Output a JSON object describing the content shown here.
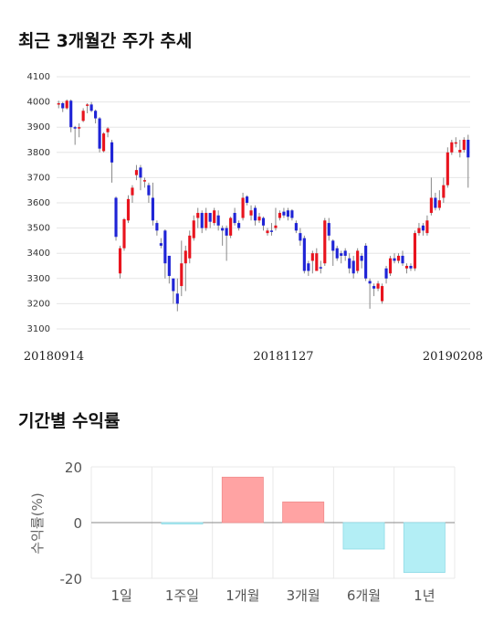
{
  "sections": {
    "price_title": "최근 3개월간 주가 추세",
    "return_title": "기간별 수익률"
  },
  "colors": {
    "up": "#e8141e",
    "down": "#1f24d6",
    "wick": "#888888",
    "bar_pos": "#ffa3a3",
    "bar_neg": "#b3eef5"
  },
  "chart_data": [
    {
      "type": "candlestick",
      "title": "최근 3개월간 주가 추세",
      "ylim": [
        3100,
        4100
      ],
      "y_ticks": [
        4100,
        4000,
        3900,
        3800,
        3700,
        3600,
        3500,
        3400,
        3300,
        3200,
        3100
      ],
      "x_tick_labels": [
        "20180914",
        "20181127",
        "20190208"
      ],
      "grid": true,
      "candles": [
        [
          3990,
          3995,
          3975,
          4005
        ],
        [
          3995,
          3975,
          3960,
          4000
        ],
        [
          3975,
          4005,
          3970,
          4010
        ],
        [
          4005,
          3900,
          3880,
          4010
        ],
        [
          3900,
          3895,
          3830,
          3905
        ],
        [
          3895,
          3900,
          3860,
          3915
        ],
        [
          3925,
          3965,
          3920,
          3975
        ],
        [
          3985,
          3990,
          3955,
          3995
        ],
        [
          3990,
          3965,
          3960,
          4000
        ],
        [
          3965,
          3935,
          3915,
          3970
        ],
        [
          3935,
          3815,
          3800,
          3940
        ],
        [
          3805,
          3875,
          3800,
          3880
        ],
        [
          3880,
          3895,
          3860,
          3900
        ],
        [
          3840,
          3760,
          3680,
          3850
        ],
        [
          3620,
          3465,
          3450,
          3625
        ],
        [
          3320,
          3420,
          3300,
          3430
        ],
        [
          3420,
          3535,
          3410,
          3540
        ],
        [
          3530,
          3615,
          3520,
          3630
        ],
        [
          3630,
          3660,
          3600,
          3670
        ],
        [
          3710,
          3730,
          3690,
          3750
        ],
        [
          3740,
          3700,
          3650,
          3750
        ],
        [
          3690,
          3690,
          3660,
          3700
        ],
        [
          3670,
          3630,
          3600,
          3680
        ],
        [
          3620,
          3530,
          3510,
          3680
        ],
        [
          3520,
          3490,
          3470,
          3530
        ],
        [
          3440,
          3430,
          3420,
          3460
        ],
        [
          3490,
          3360,
          3300,
          3495
        ],
        [
          3390,
          3310,
          3280,
          3390
        ],
        [
          3300,
          3250,
          3200,
          3300
        ],
        [
          3240,
          3200,
          3170,
          3300
        ],
        [
          3270,
          3360,
          3230,
          3450
        ],
        [
          3360,
          3410,
          3250,
          3430
        ],
        [
          3380,
          3470,
          3360,
          3490
        ],
        [
          3460,
          3530,
          3450,
          3550
        ],
        [
          3540,
          3560,
          3500,
          3580
        ],
        [
          3560,
          3500,
          3480,
          3570
        ],
        [
          3500,
          3560,
          3490,
          3580
        ],
        [
          3560,
          3525,
          3500,
          3560
        ],
        [
          3520,
          3570,
          3510,
          3580
        ],
        [
          3550,
          3510,
          3490,
          3570
        ],
        [
          3500,
          3490,
          3430,
          3510
        ],
        [
          3500,
          3470,
          3370,
          3510
        ],
        [
          3470,
          3540,
          3460,
          3545
        ],
        [
          3560,
          3520,
          3510,
          3580
        ],
        [
          3520,
          3500,
          3490,
          3530
        ],
        [
          3540,
          3620,
          3530,
          3640
        ],
        [
          3625,
          3600,
          3590,
          3630
        ],
        [
          3550,
          3570,
          3530,
          3590
        ],
        [
          3580,
          3530,
          3510,
          3590
        ],
        [
          3530,
          3545,
          3520,
          3560
        ],
        [
          3540,
          3510,
          3490,
          3545
        ],
        [
          3480,
          3490,
          3470,
          3500
        ],
        [
          3490,
          3485,
          3470,
          3520
        ],
        [
          3500,
          3510,
          3490,
          3580
        ],
        [
          3540,
          3560,
          3530,
          3570
        ],
        [
          3565,
          3550,
          3540,
          3580
        ],
        [
          3570,
          3545,
          3530,
          3580
        ],
        [
          3570,
          3540,
          3530,
          3575
        ],
        [
          3520,
          3490,
          3480,
          3530
        ],
        [
          3480,
          3450,
          3430,
          3500
        ],
        [
          3460,
          3330,
          3320,
          3470
        ],
        [
          3360,
          3330,
          3310,
          3370
        ],
        [
          3370,
          3400,
          3320,
          3410
        ],
        [
          3330,
          3400,
          3330,
          3420
        ],
        [
          3345,
          3340,
          3320,
          3370
        ],
        [
          3360,
          3530,
          3350,
          3540
        ],
        [
          3520,
          3470,
          3450,
          3540
        ],
        [
          3450,
          3410,
          3350,
          3455
        ],
        [
          3420,
          3380,
          3370,
          3430
        ],
        [
          3400,
          3390,
          3360,
          3410
        ],
        [
          3410,
          3390,
          3370,
          3420
        ],
        [
          3380,
          3340,
          3320,
          3400
        ],
        [
          3370,
          3320,
          3300,
          3390
        ],
        [
          3330,
          3410,
          3320,
          3420
        ],
        [
          3390,
          3370,
          3340,
          3400
        ],
        [
          3430,
          3300,
          3290,
          3440
        ],
        [
          3290,
          3280,
          3180,
          3300
        ],
        [
          3270,
          3260,
          3230,
          3280
        ],
        [
          3260,
          3280,
          3250,
          3290
        ],
        [
          3210,
          3270,
          3200,
          3280
        ],
        [
          3340,
          3300,
          3280,
          3350
        ],
        [
          3320,
          3380,
          3310,
          3390
        ],
        [
          3380,
          3370,
          3360,
          3400
        ],
        [
          3370,
          3390,
          3360,
          3400
        ],
        [
          3390,
          3360,
          3350,
          3410
        ],
        [
          3340,
          3350,
          3320,
          3360
        ],
        [
          3350,
          3340,
          3330,
          3360
        ],
        [
          3340,
          3480,
          3330,
          3490
        ],
        [
          3480,
          3500,
          3470,
          3520
        ],
        [
          3510,
          3490,
          3470,
          3520
        ],
        [
          3480,
          3530,
          3470,
          3550
        ],
        [
          3560,
          3620,
          3550,
          3700
        ],
        [
          3620,
          3580,
          3570,
          3640
        ],
        [
          3580,
          3610,
          3570,
          3650
        ],
        [
          3620,
          3670,
          3600,
          3700
        ],
        [
          3670,
          3800,
          3660,
          3820
        ],
        [
          3800,
          3840,
          3790,
          3850
        ],
        [
          3840,
          3840,
          3820,
          3860
        ],
        [
          3800,
          3810,
          3780,
          3850
        ],
        [
          3810,
          3850,
          3800,
          3860
        ],
        [
          3850,
          3780,
          3660,
          3870
        ]
      ]
    },
    {
      "type": "bar",
      "title": "기간별 수익률",
      "ylabel": "수익률(%)",
      "ylim": [
        -20,
        20
      ],
      "y_ticks": [
        20,
        0,
        -20
      ],
      "categories": [
        "1일",
        "1주일",
        "1개월",
        "3개월",
        "6개월",
        "1년"
      ],
      "values": [
        0,
        -0.5,
        16.3,
        7.4,
        -9.5,
        -17.9
      ]
    }
  ]
}
